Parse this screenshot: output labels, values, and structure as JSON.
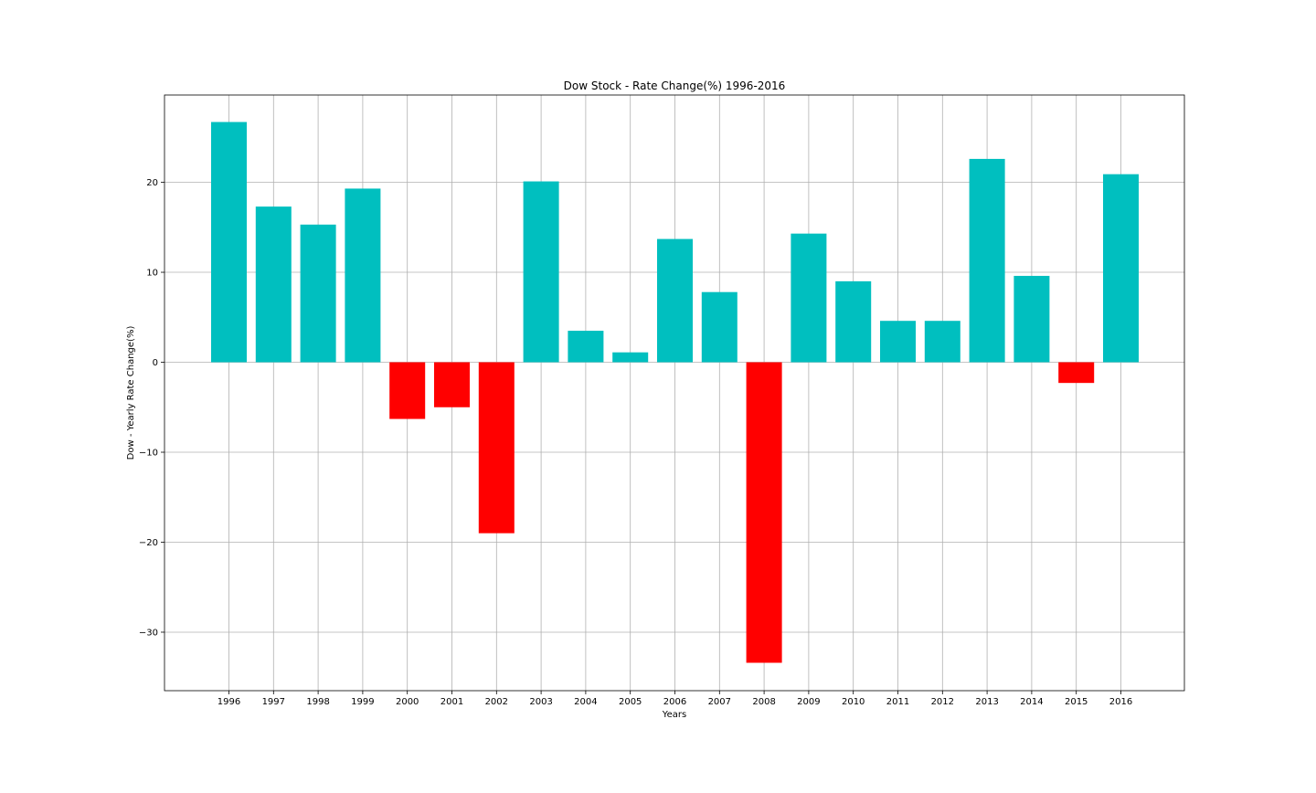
{
  "chart_data": {
    "type": "bar",
    "title": "Dow Stock - Rate Change(%) 1996-2016",
    "xlabel": "Years",
    "ylabel": "Dow - Yearly Rate Change(%)",
    "categories": [
      "1996",
      "1997",
      "1998",
      "1999",
      "2000",
      "2001",
      "2002",
      "2003",
      "2004",
      "2005",
      "2006",
      "2007",
      "2008",
      "2009",
      "2010",
      "2011",
      "2012",
      "2013",
      "2014",
      "2015",
      "2016"
    ],
    "values": [
      26.7,
      17.3,
      15.3,
      19.3,
      -6.3,
      -5.0,
      -19.0,
      20.1,
      3.5,
      1.1,
      13.7,
      7.8,
      -33.4,
      14.3,
      9.0,
      4.6,
      4.6,
      22.6,
      9.6,
      -2.3,
      20.9
    ],
    "ylim": [
      -36.5,
      29.7
    ],
    "yticks": [
      -30,
      -20,
      -10,
      0,
      10,
      20
    ],
    "ytick_labels": [
      "−30",
      "−20",
      "−10",
      "0",
      "10",
      "20"
    ],
    "grid": true,
    "colors": {
      "positive": "#00bfbf",
      "negative": "#ff0000"
    }
  }
}
